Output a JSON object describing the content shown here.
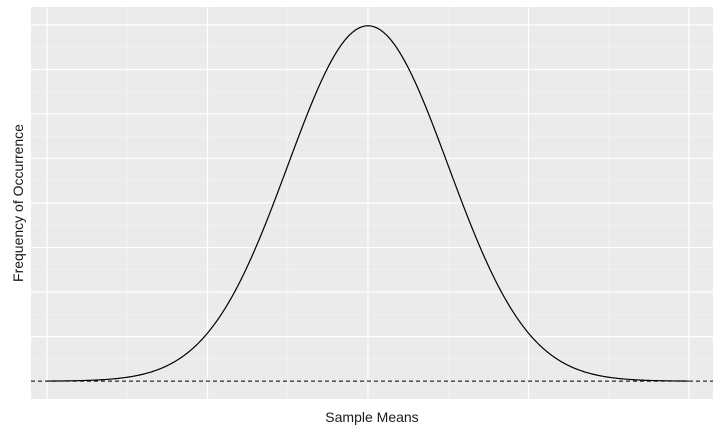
{
  "chart_data": {
    "type": "line",
    "title": "",
    "xlabel": "Sample Means",
    "ylabel": "Frequency of Occurrence",
    "xlim": [
      -4.2,
      4.3
    ],
    "ylim": [
      -0.02,
      0.42
    ],
    "x_ticks_major": [
      -4,
      -2,
      0,
      2,
      4
    ],
    "x_ticks_minor": [
      -3,
      -1,
      1,
      3
    ],
    "y_ticks_major": [
      0.05,
      0.1,
      0.15,
      0.2,
      0.25,
      0.3,
      0.35,
      0.4
    ],
    "y_ticks_minor": [
      0.025,
      0.075,
      0.125,
      0.175,
      0.225,
      0.275,
      0.325,
      0.375
    ],
    "tick_labels_shown": false,
    "grid": true,
    "series": [
      {
        "distribution": "normal",
        "mean": 0,
        "sd": 1,
        "x_range": [
          -4,
          4
        ],
        "color": "#000000",
        "style": "solid"
      }
    ],
    "reference_lines": [
      {
        "orientation": "horizontal",
        "y": 0,
        "style": "dashed",
        "color": "#000000"
      }
    ],
    "colors": {
      "panel_background": "#ebebeb",
      "grid_major": "#ffffff",
      "grid_minor": "#f4f4f4"
    }
  }
}
